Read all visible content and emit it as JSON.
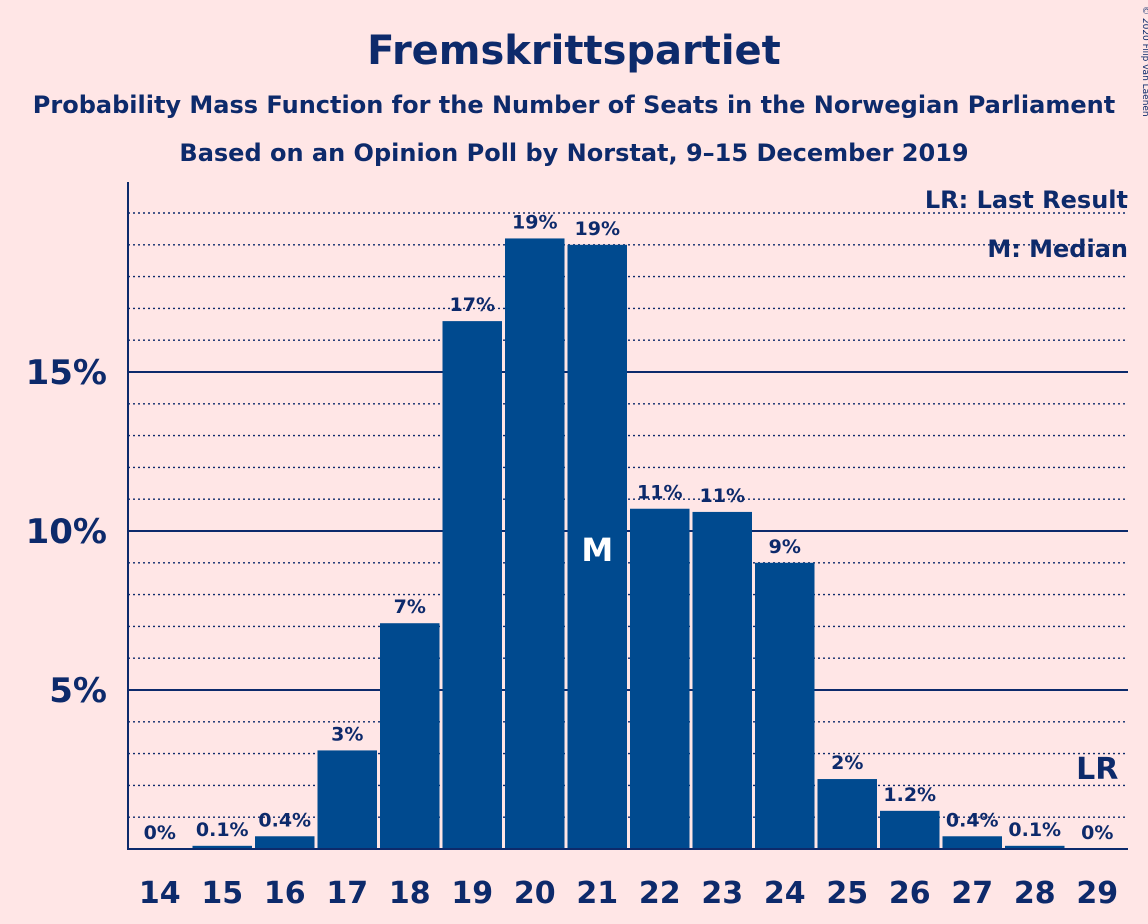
{
  "colors": {
    "background": "#ffe6e6",
    "bar": "#004a8f",
    "text": "#0d2a6b"
  },
  "chart_data": {
    "type": "bar",
    "title": "Fremskrittspartiet",
    "subtitle": "Probability Mass Function for the Number of Seats in the Norwegian Parliament",
    "subtitle2": "Based on an Opinion Poll by Norstat, 9–15 December 2019",
    "copyright": "© 2020 Filip van Laenen",
    "categories": [
      "14",
      "15",
      "16",
      "17",
      "18",
      "19",
      "20",
      "21",
      "22",
      "23",
      "24",
      "25",
      "26",
      "27",
      "28",
      "29"
    ],
    "values": [
      0,
      0.1,
      0.4,
      3.1,
      7.1,
      16.6,
      19.2,
      19.0,
      10.7,
      10.6,
      9.0,
      2.2,
      1.2,
      0.4,
      0.1,
      0
    ],
    "data_labels": [
      "0%",
      "0.1%",
      "0.4%",
      "3%",
      "7%",
      "17%",
      "19%",
      "19%",
      "11%",
      "11%",
      "9%",
      "2%",
      "1.2%",
      "0.4%",
      "0.1%",
      "0%"
    ],
    "yticks": [
      5,
      10,
      15
    ],
    "ytick_labels": [
      "5%",
      "10%",
      "15%"
    ],
    "ylim": [
      0,
      21
    ],
    "minor_grid_step": 1,
    "median_seat": "21",
    "median_marker": "M",
    "last_result_seat": "29",
    "last_result_marker": "LR",
    "legend": [
      "LR: Last Result",
      "M: Median"
    ],
    "legend_position": "top-right"
  }
}
